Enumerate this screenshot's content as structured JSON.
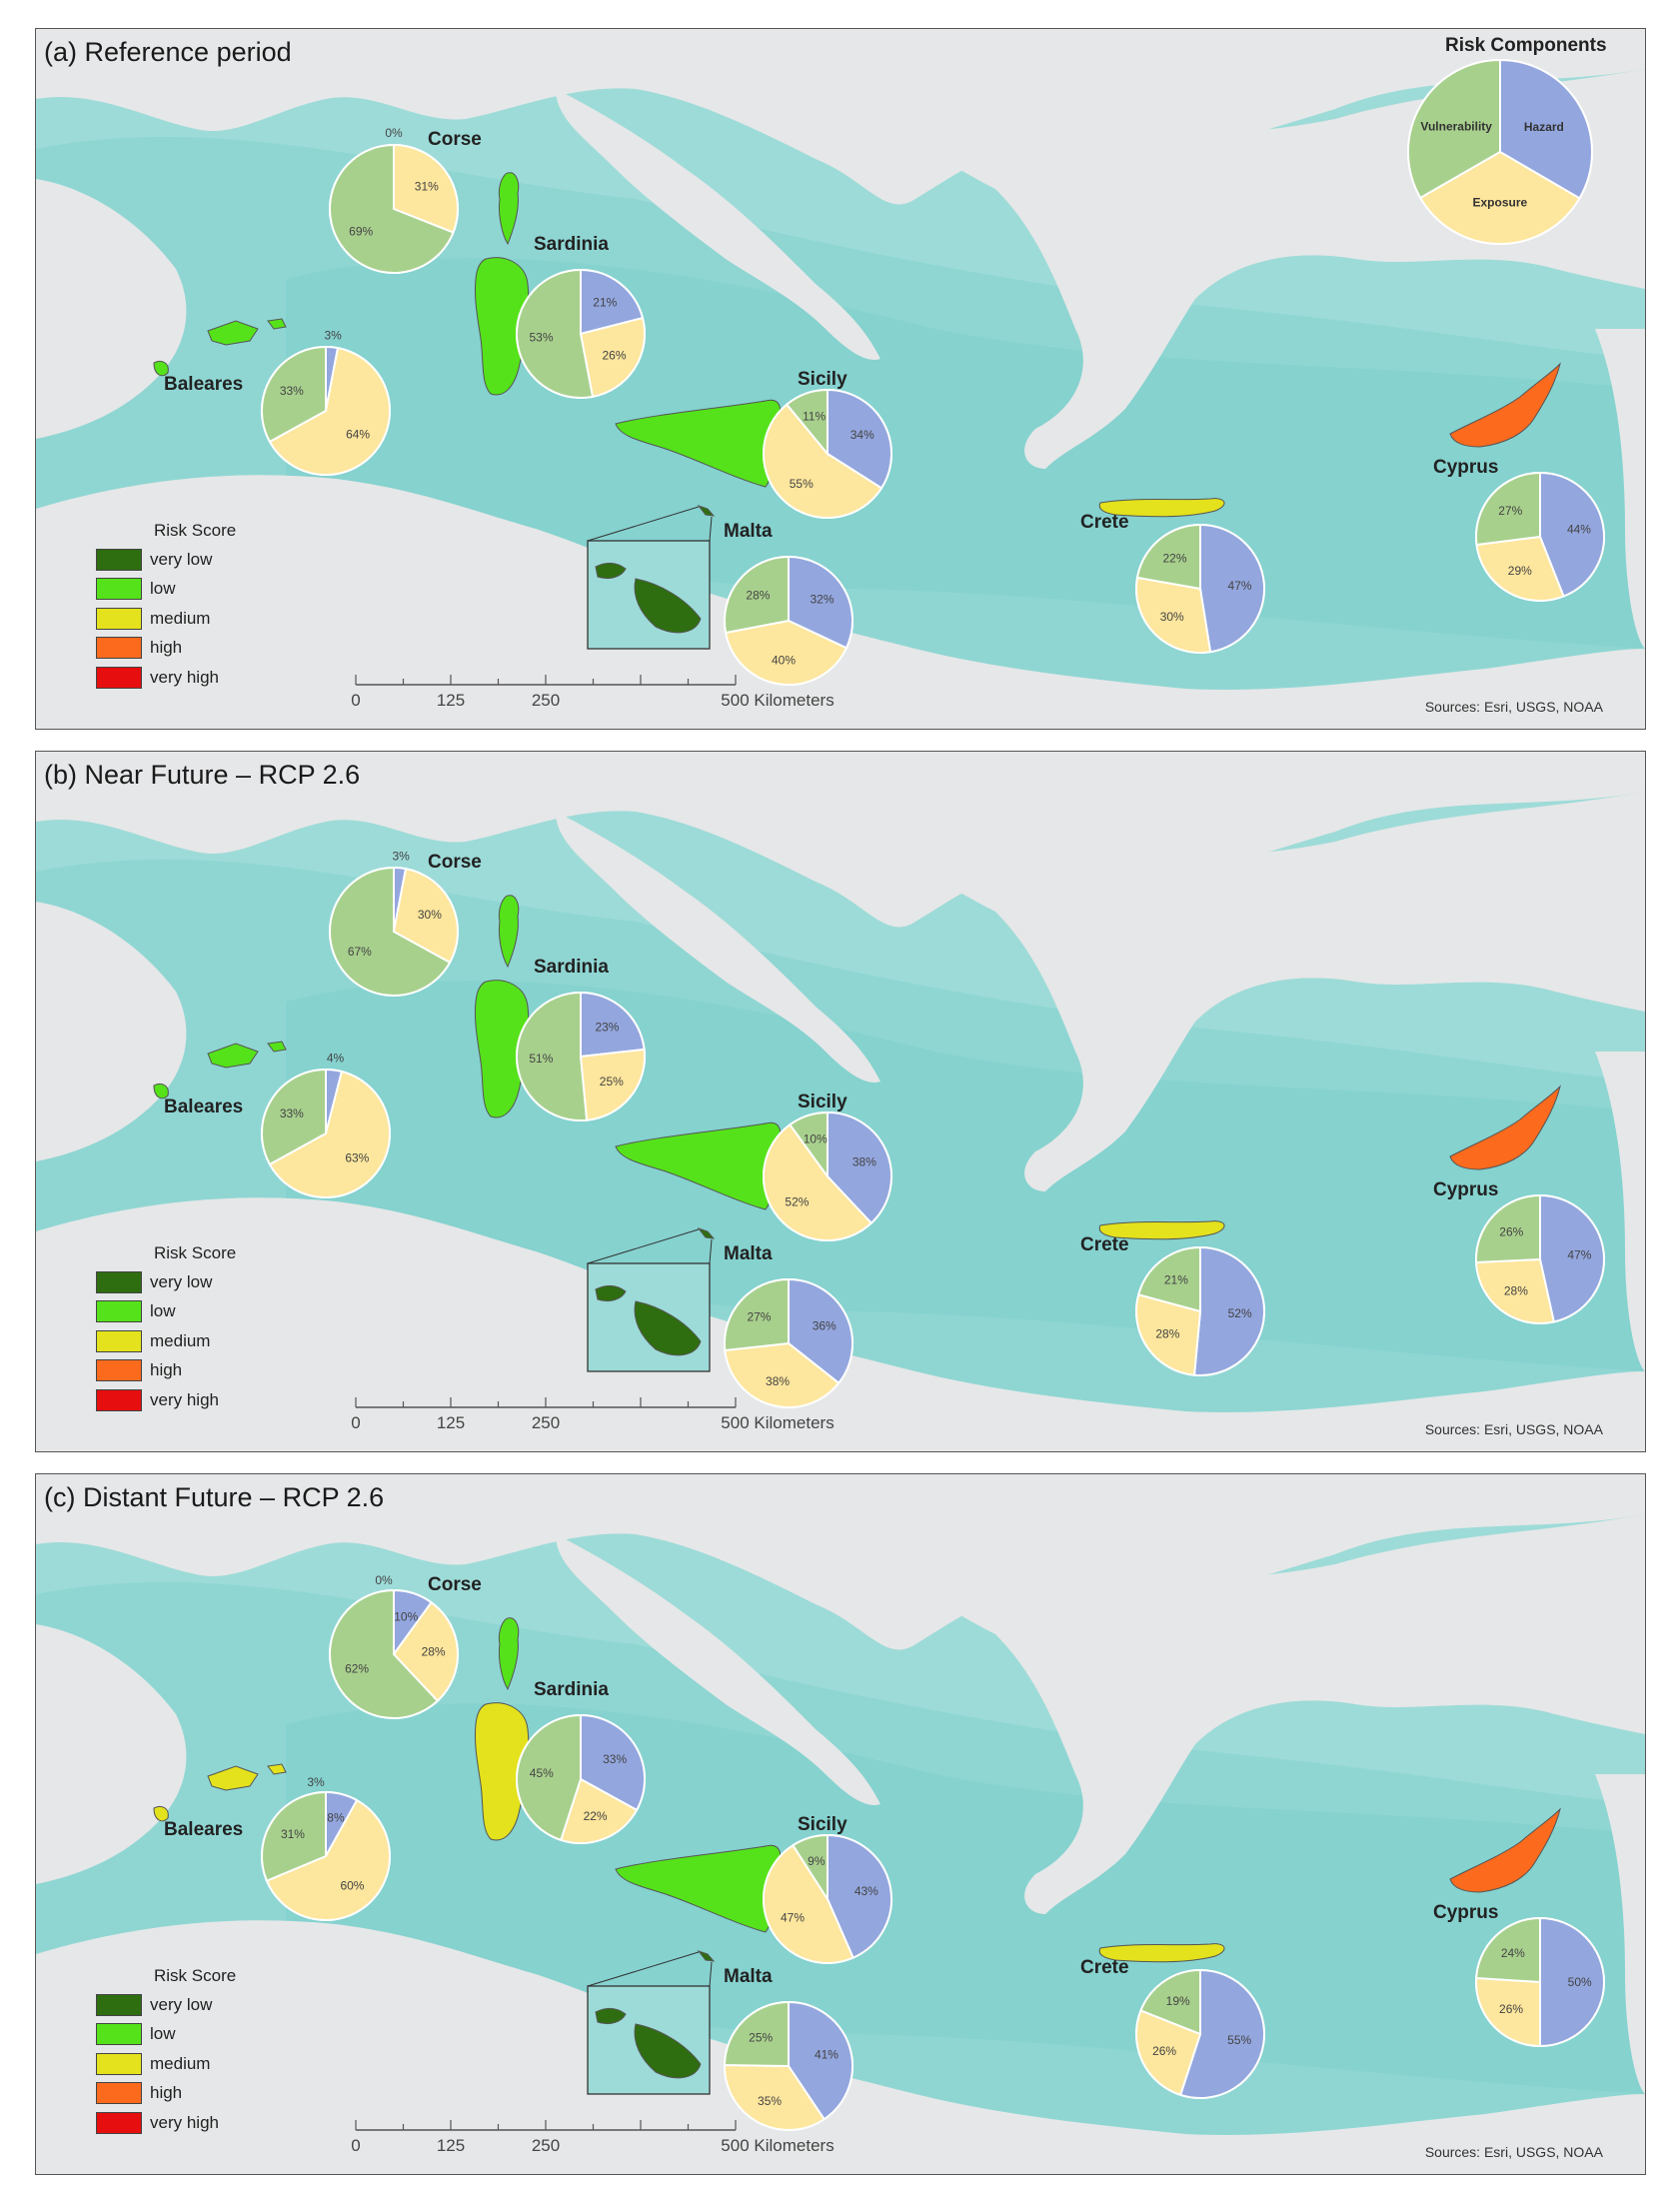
{
  "legend": {
    "title": "Risk Score",
    "items": [
      {
        "label": "very low",
        "color": "#2e6e10"
      },
      {
        "label": "low",
        "color": "#55e21a"
      },
      {
        "label": "medium",
        "color": "#e3e21c"
      },
      {
        "label": "high",
        "color": "#fb6a1d"
      },
      {
        "label": "very high",
        "color": "#e60e0e"
      }
    ]
  },
  "scale": {
    "ticks": [
      "0",
      "125",
      "250"
    ],
    "end_label": "500 Kilometers"
  },
  "sources": "Sources: Esri, USGS, NOAA",
  "risk_components": {
    "title": "Risk Components",
    "labels": [
      "Hazard",
      "Exposure",
      "Vulnerability"
    ],
    "colors": {
      "hazard": "#93a6de",
      "exposure": "#fde69d",
      "vulnerability": "#a8d08d"
    }
  },
  "panels": [
    {
      "title": "(a) Reference period",
      "islands": [
        {
          "name": "Corse",
          "color": "#55e21a",
          "hazard": 0,
          "exposure": 31,
          "vulnerability": 69,
          "labels": [
            "0%",
            "31%",
            "69%"
          ]
        },
        {
          "name": "Sardinia",
          "color": "#55e21a",
          "hazard": 21,
          "exposure": 26,
          "vulnerability": 53,
          "labels": [
            "21%",
            "26%",
            "53%"
          ]
        },
        {
          "name": "Baleares",
          "color": "#55e21a",
          "hazard": 3,
          "exposure": 64,
          "vulnerability": 33,
          "labels": [
            "3%",
            "64%",
            "33%"
          ]
        },
        {
          "name": "Sicily",
          "color": "#55e21a",
          "hazard": 34,
          "exposure": 55,
          "vulnerability": 11,
          "labels": [
            "34%",
            "55%",
            "11%"
          ]
        },
        {
          "name": "Malta",
          "color": "#2e6e10",
          "hazard": 32,
          "exposure": 40,
          "vulnerability": 28,
          "labels": [
            "32%",
            "40%",
            "28%"
          ]
        },
        {
          "name": "Crete",
          "color": "#e3e21c",
          "hazard": 47,
          "exposure": 30,
          "vulnerability": 22,
          "labels": [
            "47%",
            "30%",
            "22%"
          ]
        },
        {
          "name": "Cyprus",
          "color": "#fb6a1d",
          "hazard": 44,
          "exposure": 29,
          "vulnerability": 27,
          "labels": [
            "44%",
            "29%",
            "27%"
          ]
        }
      ]
    },
    {
      "title": "(b) Near Future – RCP 2.6",
      "islands": [
        {
          "name": "Corse",
          "color": "#55e21a",
          "hazard": 3,
          "exposure": 30,
          "vulnerability": 67,
          "labels": [
            "3%",
            "30%",
            "67%"
          ]
        },
        {
          "name": "Sardinia",
          "color": "#55e21a",
          "hazard": 23,
          "exposure": 25,
          "vulnerability": 51,
          "labels": [
            "23%",
            "25%",
            "51%"
          ]
        },
        {
          "name": "Baleares",
          "color": "#55e21a",
          "hazard": 4,
          "exposure": 63,
          "vulnerability": 33,
          "labels": [
            "4%",
            "63%",
            "33%"
          ]
        },
        {
          "name": "Sicily",
          "color": "#55e21a",
          "hazard": 38,
          "exposure": 52,
          "vulnerability": 10,
          "labels": [
            "38%",
            "52%",
            "10%"
          ]
        },
        {
          "name": "Malta",
          "color": "#2e6e10",
          "hazard": 36,
          "exposure": 38,
          "vulnerability": 27,
          "labels": [
            "36%",
            "38%",
            "27%"
          ]
        },
        {
          "name": "Crete",
          "color": "#e3e21c",
          "hazard": 52,
          "exposure": 28,
          "vulnerability": 21,
          "labels": [
            "52%",
            "28%",
            "21%"
          ]
        },
        {
          "name": "Cyprus",
          "color": "#fb6a1d",
          "hazard": 47,
          "exposure": 28,
          "vulnerability": 26,
          "labels": [
            "47%",
            "28%",
            "26%"
          ]
        }
      ]
    },
    {
      "title": "(c) Distant Future – RCP 2.6",
      "islands": [
        {
          "name": "Corse",
          "color": "#55e21a",
          "hazard": 10,
          "exposure": 28,
          "vulnerability": 62,
          "labels": [
            "10%",
            "28%",
            "62%"
          ],
          "extra_label": "0%"
        },
        {
          "name": "Sardinia",
          "color": "#e3e21c",
          "hazard": 33,
          "exposure": 22,
          "vulnerability": 45,
          "labels": [
            "33%",
            "22%",
            "45%"
          ]
        },
        {
          "name": "Baleares",
          "color": "#e3e21c",
          "hazard": 8,
          "exposure": 60,
          "vulnerability": 31,
          "labels": [
            "8%",
            "60%",
            "31%"
          ],
          "extra_label": "3%"
        },
        {
          "name": "Sicily",
          "color": "#55e21a",
          "hazard": 43,
          "exposure": 47,
          "vulnerability": 9,
          "labels": [
            "43%",
            "47%",
            "9%"
          ]
        },
        {
          "name": "Malta",
          "color": "#2e6e10",
          "hazard": 41,
          "exposure": 35,
          "vulnerability": 25,
          "labels": [
            "41%",
            "35%",
            "25%"
          ]
        },
        {
          "name": "Crete",
          "color": "#e3e21c",
          "hazard": 55,
          "exposure": 26,
          "vulnerability": 19,
          "labels": [
            "55%",
            "26%",
            "19%"
          ]
        },
        {
          "name": "Cyprus",
          "color": "#fb6a1d",
          "hazard": 50,
          "exposure": 26,
          "vulnerability": 24,
          "labels": [
            "50%",
            "26%",
            "24%"
          ]
        }
      ]
    }
  ]
}
